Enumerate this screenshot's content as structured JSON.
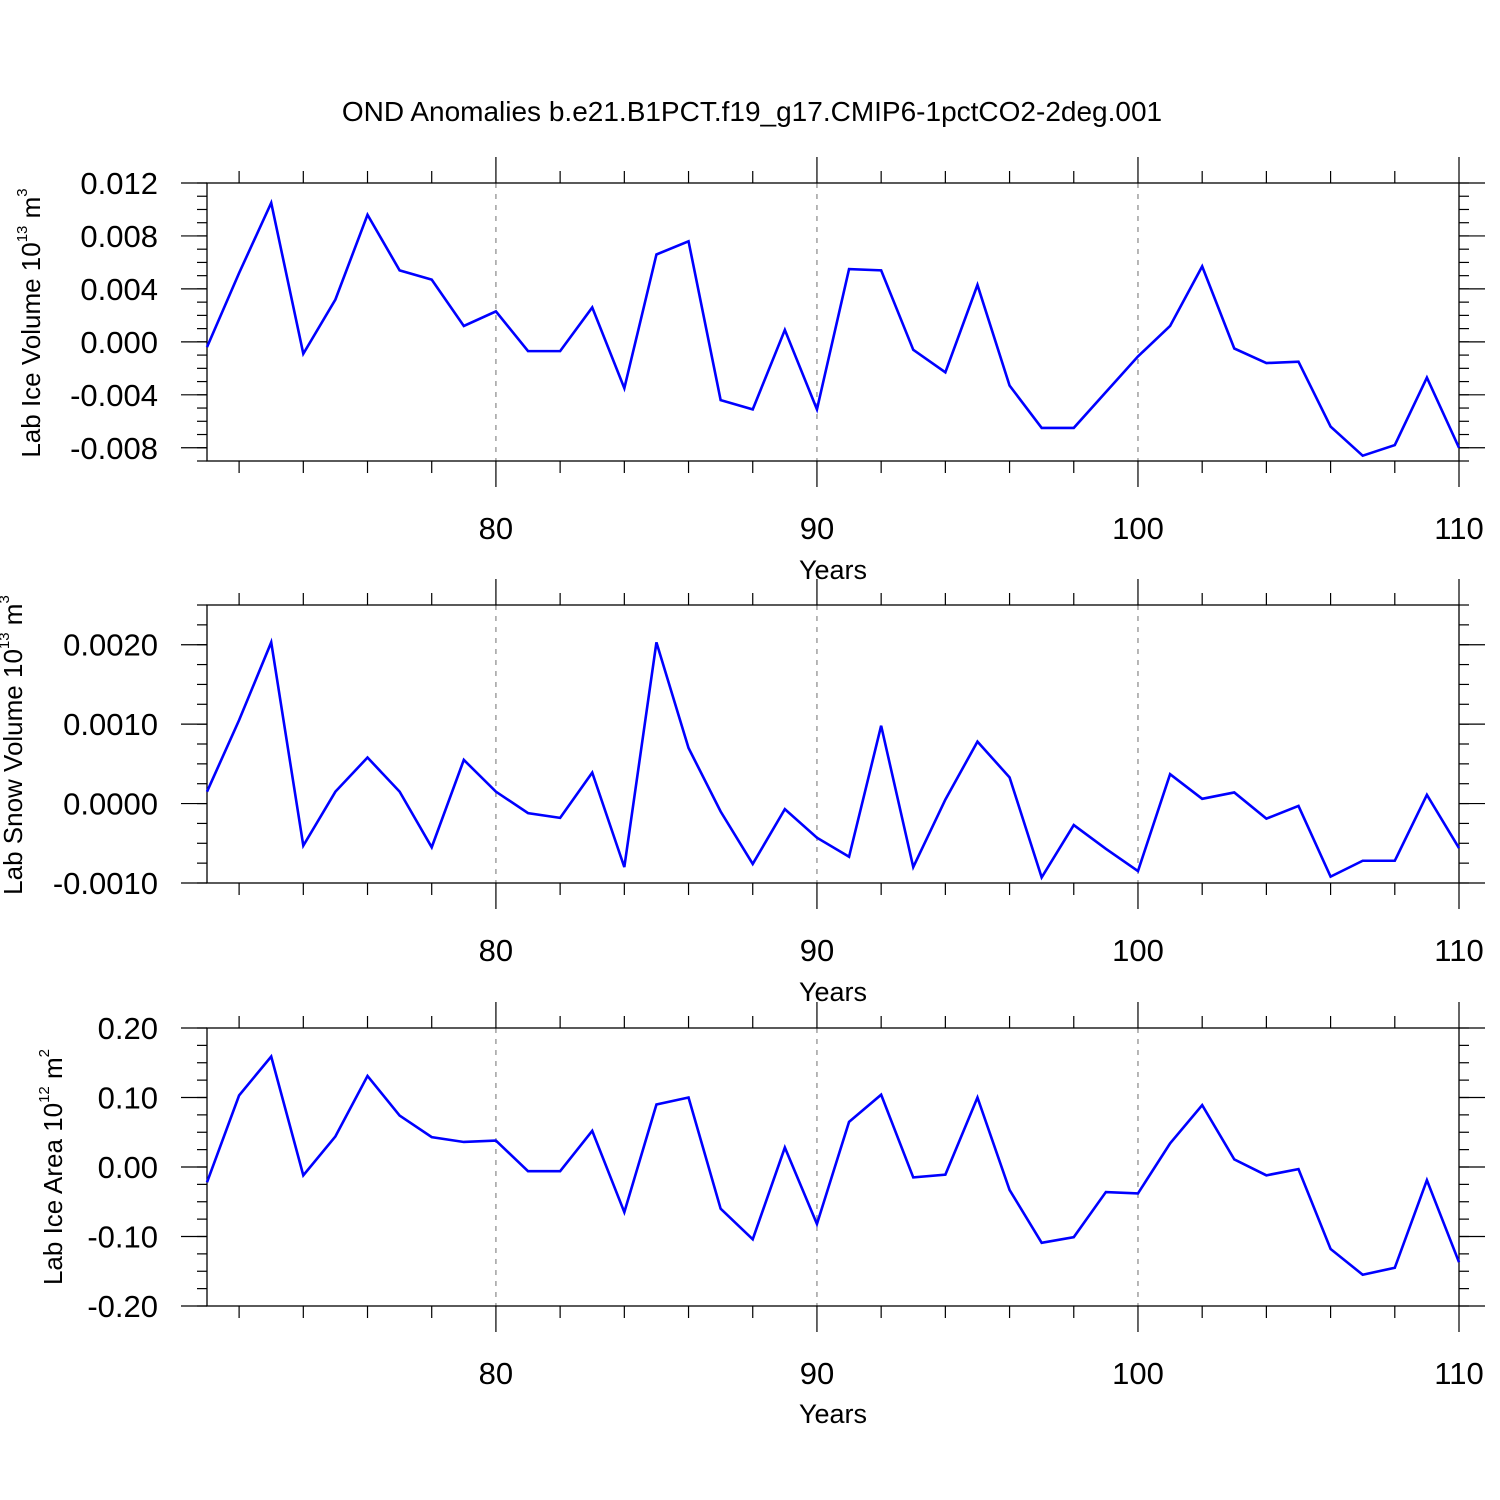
{
  "figure": {
    "title": "OND Anomalies b.e21.B1PCT.f19_g17.CMIP6-1pctCO2-2deg.001",
    "line_color": "#0000ff",
    "grid_color": "#888888"
  },
  "chart_data": [
    {
      "type": "line",
      "title": "",
      "xlabel": "Years",
      "ylabel": "Lab Ice Volume 10",
      "ylabel_exp": "13",
      "ylabel_unit": "m",
      "ylabel_unit_exp": "3",
      "xlim": [
        71,
        110
      ],
      "ylim": [
        -0.009,
        0.012
      ],
      "x_ticks": [
        80,
        90,
        100,
        110
      ],
      "x_tick_labels": [
        "80",
        "90",
        "100",
        "110"
      ],
      "y_ticks": [
        0.012,
        0.008,
        0.004,
        0.0,
        -0.004,
        -0.008
      ],
      "y_tick_labels": [
        "0.012",
        "0.008",
        "0.004",
        "0.000",
        "-0.004",
        "-0.008"
      ],
      "grid_x": [
        80,
        90,
        100
      ],
      "x": [
        71,
        72,
        73,
        74,
        75,
        76,
        77,
        78,
        79,
        80,
        81,
        82,
        83,
        84,
        85,
        86,
        87,
        88,
        89,
        90,
        91,
        92,
        93,
        94,
        95,
        96,
        97,
        98,
        99,
        100,
        101,
        102,
        103,
        104,
        105,
        106,
        107,
        108,
        109,
        110
      ],
      "series": [
        {
          "name": "Lab Ice Volume",
          "values": [
            -0.0004,
            0.0052,
            0.0105,
            -0.0009,
            0.0032,
            0.0096,
            0.0054,
            0.0047,
            0.0012,
            0.0023,
            -0.0007,
            -0.0007,
            0.0026,
            -0.0035,
            0.0066,
            0.0076,
            -0.0044,
            -0.0051,
            0.0009,
            -0.0051,
            0.0055,
            0.0054,
            -0.0006,
            -0.0023,
            0.0043,
            -0.0033,
            -0.0065,
            -0.0065,
            -0.0038,
            -0.0011,
            0.0012,
            0.0057,
            -0.0005,
            -0.0016,
            -0.0015,
            -0.0064,
            -0.0086,
            -0.0078,
            -0.0027,
            -0.008
          ]
        }
      ]
    },
    {
      "type": "line",
      "title": "",
      "xlabel": "Years",
      "ylabel": "Lab Snow Volume 10",
      "ylabel_exp": "13",
      "ylabel_unit": "m",
      "ylabel_unit_exp": "3",
      "xlim": [
        71,
        110
      ],
      "ylim": [
        -0.001,
        0.0025
      ],
      "x_ticks": [
        80,
        90,
        100,
        110
      ],
      "x_tick_labels": [
        "80",
        "90",
        "100",
        "110"
      ],
      "y_ticks": [
        0.002,
        0.001,
        0.0,
        -0.001
      ],
      "y_tick_labels": [
        "0.0020",
        "0.0010",
        "0.0000",
        "-0.0010"
      ],
      "grid_x": [
        80,
        90,
        100
      ],
      "x": [
        71,
        72,
        73,
        74,
        75,
        76,
        77,
        78,
        79,
        80,
        81,
        82,
        83,
        84,
        85,
        86,
        87,
        88,
        89,
        90,
        91,
        92,
        93,
        94,
        95,
        96,
        97,
        98,
        99,
        100,
        101,
        102,
        103,
        104,
        105,
        106,
        107,
        108,
        109,
        110
      ],
      "series": [
        {
          "name": "Lab Snow Volume",
          "values": [
            0.00015,
            0.00105,
            0.00203,
            -0.00053,
            0.00015,
            0.00058,
            0.00015,
            -0.00055,
            0.00055,
            0.00015,
            -0.00012,
            -0.00018,
            0.00039,
            -0.0008,
            0.00203,
            0.0007,
            -0.0001,
            -0.00076,
            -7e-05,
            -0.00043,
            -0.00067,
            0.00098,
            -0.0008,
            5e-05,
            0.00078,
            0.00033,
            -0.00093,
            -0.00027,
            -0.00057,
            -0.00085,
            0.00037,
            6e-05,
            0.00014,
            -0.00019,
            -3e-05,
            -0.00092,
            -0.00072,
            -0.00072,
            0.00011,
            -0.00056
          ]
        }
      ]
    },
    {
      "type": "line",
      "title": "",
      "xlabel": "Years",
      "ylabel": "Lab Ice Area 10",
      "ylabel_exp": "12",
      "ylabel_unit": "m",
      "ylabel_unit_exp": "2",
      "xlim": [
        71,
        110
      ],
      "ylim": [
        -0.2,
        0.2
      ],
      "x_ticks": [
        80,
        90,
        100,
        110
      ],
      "x_tick_labels": [
        "80",
        "90",
        "100",
        "110"
      ],
      "y_ticks": [
        0.2,
        0.1,
        0.0,
        -0.1,
        -0.2
      ],
      "y_tick_labels": [
        "0.20",
        "0.10",
        "0.00",
        "-0.10",
        "-0.20"
      ],
      "grid_x": [
        80,
        90,
        100
      ],
      "x": [
        71,
        72,
        73,
        74,
        75,
        76,
        77,
        78,
        79,
        80,
        81,
        82,
        83,
        84,
        85,
        86,
        87,
        88,
        89,
        90,
        91,
        92,
        93,
        94,
        95,
        96,
        97,
        98,
        99,
        100,
        101,
        102,
        103,
        104,
        105,
        106,
        107,
        108,
        109,
        110
      ],
      "series": [
        {
          "name": "Lab Ice Area",
          "values": [
            -0.022,
            0.103,
            0.159,
            -0.012,
            0.044,
            0.131,
            0.074,
            0.043,
            0.036,
            0.038,
            -0.006,
            -0.006,
            0.052,
            -0.065,
            0.09,
            0.1,
            -0.06,
            -0.104,
            0.028,
            -0.082,
            0.065,
            0.104,
            -0.015,
            -0.011,
            0.1,
            -0.033,
            -0.109,
            -0.101,
            -0.036,
            -0.038,
            0.034,
            0.089,
            0.011,
            -0.012,
            -0.003,
            -0.118,
            -0.155,
            -0.145,
            -0.019,
            -0.137
          ]
        }
      ]
    }
  ]
}
